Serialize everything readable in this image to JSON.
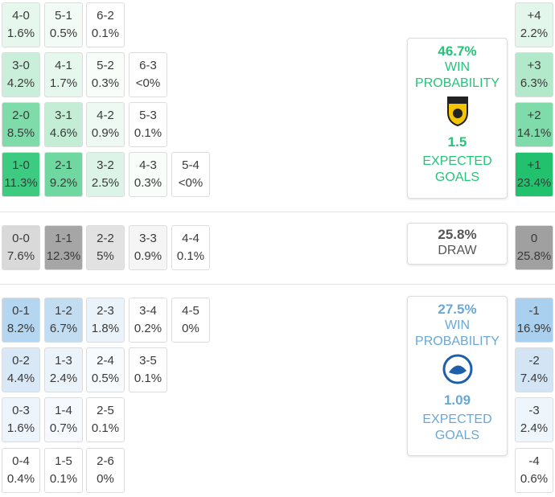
{
  "home": {
    "rows": [
      [
        {
          "score": "4-0",
          "prob": "1.6%",
          "color": "#e6f7ee"
        },
        {
          "score": "5-1",
          "prob": "0.5%",
          "color": "#f3fbf6"
        },
        {
          "score": "6-2",
          "prob": "0.1%",
          "color": "#ffffff"
        }
      ],
      [
        {
          "score": "3-0",
          "prob": "4.2%",
          "color": "#c9efda"
        },
        {
          "score": "4-1",
          "prob": "1.7%",
          "color": "#e6f7ee"
        },
        {
          "score": "5-2",
          "prob": "0.3%",
          "color": "#f8fdfa"
        },
        {
          "score": "6-3",
          "prob": "<0%",
          "color": "#ffffff"
        }
      ],
      [
        {
          "score": "2-0",
          "prob": "8.5%",
          "color": "#7fdcaa"
        },
        {
          "score": "3-1",
          "prob": "4.6%",
          "color": "#c4edd6"
        },
        {
          "score": "4-2",
          "prob": "0.9%",
          "color": "#eef9f3"
        },
        {
          "score": "5-3",
          "prob": "0.1%",
          "color": "#ffffff"
        }
      ],
      [
        {
          "score": "1-0",
          "prob": "11.3%",
          "color": "#3dcb82"
        },
        {
          "score": "2-1",
          "prob": "9.2%",
          "color": "#6fd8a0"
        },
        {
          "score": "3-2",
          "prob": "2.5%",
          "color": "#dcf4e7"
        },
        {
          "score": "4-3",
          "prob": "0.3%",
          "color": "#f8fdfa"
        },
        {
          "score": "5-4",
          "prob": "<0%",
          "color": "#ffffff"
        }
      ]
    ],
    "margins": [
      {
        "score": "+4",
        "prob": "2.2%",
        "color": "#e3f6ec"
      },
      {
        "score": "+3",
        "prob": "6.3%",
        "color": "#b2e9cb"
      },
      {
        "score": "+2",
        "prob": "14.1%",
        "color": "#7fdcaa"
      },
      {
        "score": "+1",
        "prob": "23.4%",
        "color": "#22c16e"
      }
    ],
    "summary": {
      "win_probability": "46.7%",
      "win_label": "WIN PROBABILITY",
      "expected_goals": "1.5",
      "xg_label": "EXPECTED GOALS"
    }
  },
  "draw": {
    "rows": [
      [
        {
          "score": "0-0",
          "prob": "7.6%",
          "color": "#d9d9d9"
        },
        {
          "score": "1-1",
          "prob": "12.3%",
          "color": "#a6a6a6"
        },
        {
          "score": "2-2",
          "prob": "5%",
          "color": "#e2e2e2"
        },
        {
          "score": "3-3",
          "prob": "0.9%",
          "color": "#f5f5f5"
        },
        {
          "score": "4-4",
          "prob": "0.1%",
          "color": "#ffffff"
        }
      ]
    ],
    "margins": [
      {
        "score": "0",
        "prob": "25.8%",
        "color": "#a0a0a0"
      }
    ],
    "summary": {
      "probability": "25.8%",
      "label": "DRAW"
    }
  },
  "away": {
    "rows": [
      [
        {
          "score": "0-1",
          "prob": "8.2%",
          "color": "#b5d6f0"
        },
        {
          "score": "1-2",
          "prob": "6.7%",
          "color": "#c2ddf2"
        },
        {
          "score": "2-3",
          "prob": "1.8%",
          "color": "#ebf3fa"
        },
        {
          "score": "3-4",
          "prob": "0.2%",
          "color": "#ffffff"
        },
        {
          "score": "4-5",
          "prob": "0%",
          "color": "#ffffff"
        }
      ],
      [
        {
          "score": "0-2",
          "prob": "4.4%",
          "color": "#d8e8f6"
        },
        {
          "score": "1-3",
          "prob": "2.4%",
          "color": "#eaf2fa"
        },
        {
          "score": "2-4",
          "prob": "0.5%",
          "color": "#f8fbfe"
        },
        {
          "score": "3-5",
          "prob": "0.1%",
          "color": "#ffffff"
        }
      ],
      [
        {
          "score": "0-3",
          "prob": "1.6%",
          "color": "#edf4fb"
        },
        {
          "score": "1-4",
          "prob": "0.7%",
          "color": "#f6f9fd"
        },
        {
          "score": "2-5",
          "prob": "0.1%",
          "color": "#ffffff"
        }
      ],
      [
        {
          "score": "0-4",
          "prob": "0.4%",
          "color": "#ffffff"
        },
        {
          "score": "1-5",
          "prob": "0.1%",
          "color": "#ffffff"
        },
        {
          "score": "2-6",
          "prob": "0%",
          "color": "#ffffff"
        }
      ]
    ],
    "margins": [
      {
        "score": "-1",
        "prob": "16.9%",
        "color": "#a9d0ef"
      },
      {
        "score": "-2",
        "prob": "7.4%",
        "color": "#d3e5f5"
      },
      {
        "score": "-3",
        "prob": "2.4%",
        "color": "#eef5fb"
      },
      {
        "score": "-4",
        "prob": "0.6%",
        "color": "#ffffff"
      }
    ],
    "summary": {
      "win_probability": "27.5%",
      "win_label": "WIN PROBABILITY",
      "expected_goals": "1.09",
      "xg_label": "EXPECTED GOALS"
    }
  }
}
